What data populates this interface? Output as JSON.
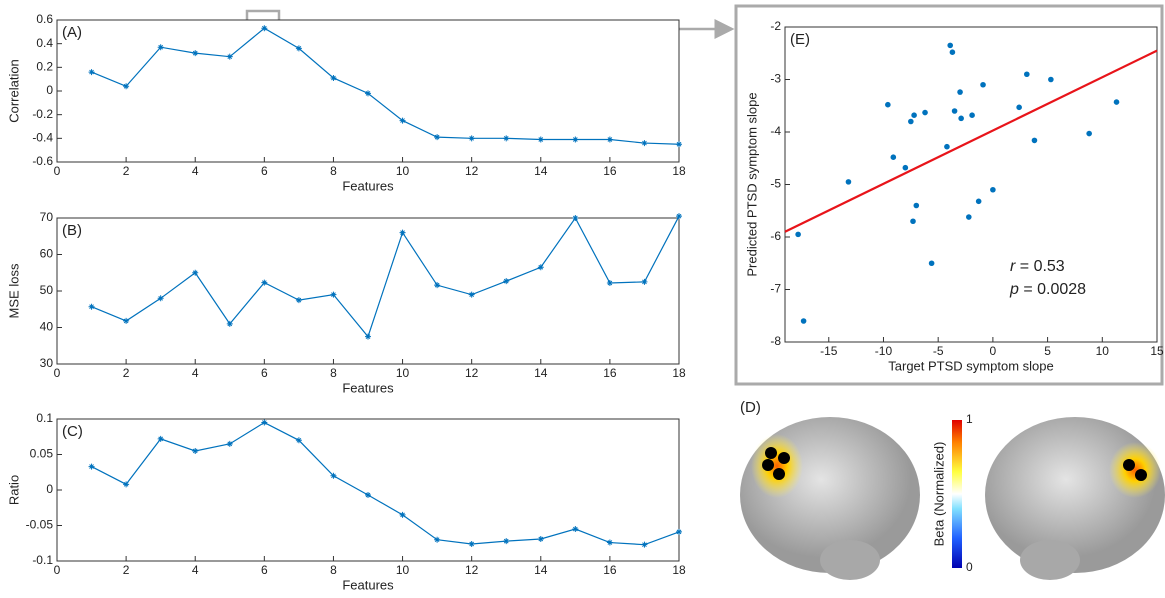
{
  "chart_data": [
    {
      "type": "line",
      "panel_label": "(A)",
      "x_label": "Features",
      "y_label": "Correlation",
      "color": "#0072bd",
      "x": [
        1,
        2,
        3,
        4,
        5,
        6,
        7,
        8,
        9,
        10,
        11,
        12,
        13,
        14,
        15,
        16,
        17,
        18
      ],
      "values": [
        0.16,
        0.04,
        0.37,
        0.32,
        0.29,
        0.53,
        0.36,
        0.11,
        -0.02,
        -0.25,
        -0.39,
        -0.4,
        -0.4,
        -0.41,
        -0.41,
        -0.41,
        -0.44,
        -0.45
      ],
      "xlim": [
        0,
        18
      ],
      "xticks": [
        0,
        2,
        4,
        6,
        8,
        10,
        12,
        14,
        16,
        18
      ],
      "ylim": [
        -0.6,
        0.6
      ],
      "yticks": [
        -0.6,
        -0.4,
        -0.2,
        0,
        0.2,
        0.4,
        0.6
      ]
    },
    {
      "type": "line",
      "panel_label": "(B)",
      "x_label": "Features",
      "y_label": "MSE loss",
      "color": "#0072bd",
      "x": [
        1,
        2,
        3,
        4,
        5,
        6,
        7,
        8,
        9,
        10,
        11,
        12,
        13,
        14,
        15,
        16,
        17,
        18
      ],
      "values": [
        45.7,
        41.8,
        48,
        55,
        41,
        52.3,
        47.5,
        49,
        37.5,
        66,
        51.6,
        49,
        52.7,
        56.5,
        70,
        52.2,
        52.5,
        70.5
      ],
      "xlim": [
        0,
        18
      ],
      "xticks": [
        0,
        2,
        4,
        6,
        8,
        10,
        12,
        14,
        16,
        18
      ],
      "ylim": [
        30,
        70
      ],
      "yticks": [
        30,
        40,
        50,
        60,
        70
      ]
    },
    {
      "type": "line",
      "panel_label": "(C)",
      "x_label": "Features",
      "y_label": "Ratio",
      "color": "#0072bd",
      "x": [
        1,
        2,
        3,
        4,
        5,
        6,
        7,
        8,
        9,
        10,
        11,
        12,
        13,
        14,
        15,
        16,
        17,
        18
      ],
      "values": [
        0.033,
        0.008,
        0.072,
        0.055,
        0.065,
        0.095,
        0.07,
        0.02,
        -0.007,
        -0.035,
        -0.07,
        -0.076,
        -0.072,
        -0.069,
        -0.055,
        -0.074,
        -0.077,
        -0.059
      ],
      "xlim": [
        0,
        18
      ],
      "xticks": [
        0,
        2,
        4,
        6,
        8,
        10,
        12,
        14,
        16,
        18
      ],
      "ylim": [
        -0.1,
        0.1
      ],
      "yticks": [
        -0.1,
        -0.05,
        0,
        0.05,
        0.1
      ]
    },
    {
      "type": "scatter",
      "panel_label": "(E)",
      "x_label": "Target PTSD symptom slope",
      "y_label": "Predicted PTSD symptom slope",
      "color": "#0072bd",
      "x": [
        -17.8,
        -17.3,
        -13.2,
        -9.6,
        -9.1,
        -8,
        -7.5,
        -7.2,
        -7.3,
        -7,
        -6.2,
        -5.6,
        -4.2,
        -3.9,
        -3.7,
        -3.5,
        -2.9,
        -3,
        -2.2,
        -1.9,
        -1.3,
        -0.9,
        0,
        2.4,
        3.1,
        3.8,
        5.3,
        8.8,
        11.3
      ],
      "values": [
        -5.95,
        -7.6,
        -4.95,
        -3.48,
        -4.48,
        -4.68,
        -3.8,
        -3.68,
        -5.7,
        -5.4,
        -3.63,
        -6.5,
        -4.28,
        -2.35,
        -2.48,
        -3.6,
        -3.74,
        -3.24,
        -5.62,
        -3.68,
        -5.32,
        -3.1,
        -5.1,
        -3.53,
        -2.9,
        -4.16,
        -3.0,
        -4.03,
        -3.43
      ],
      "fit_line": {
        "color": "#e8141a",
        "x": [
          -19,
          15
        ],
        "values": [
          -5.9,
          -2.45
        ]
      },
      "annotations": [
        {
          "symbol": "r",
          "text": " = 0.53"
        },
        {
          "symbol": "p",
          "text": " = 0.0028"
        }
      ],
      "xlim": [
        -19,
        15
      ],
      "xticks": [
        -15,
        -10,
        -5,
        0,
        5,
        10,
        15
      ],
      "ylim": [
        -8,
        -2
      ],
      "yticks": [
        -8,
        -7,
        -6,
        -5,
        -4,
        -3,
        -2
      ]
    }
  ],
  "brain_panel": {
    "label": "(D)",
    "colorbar_label": "Beta (Normalized)",
    "colorbar_ticks": [
      0,
      1
    ]
  }
}
